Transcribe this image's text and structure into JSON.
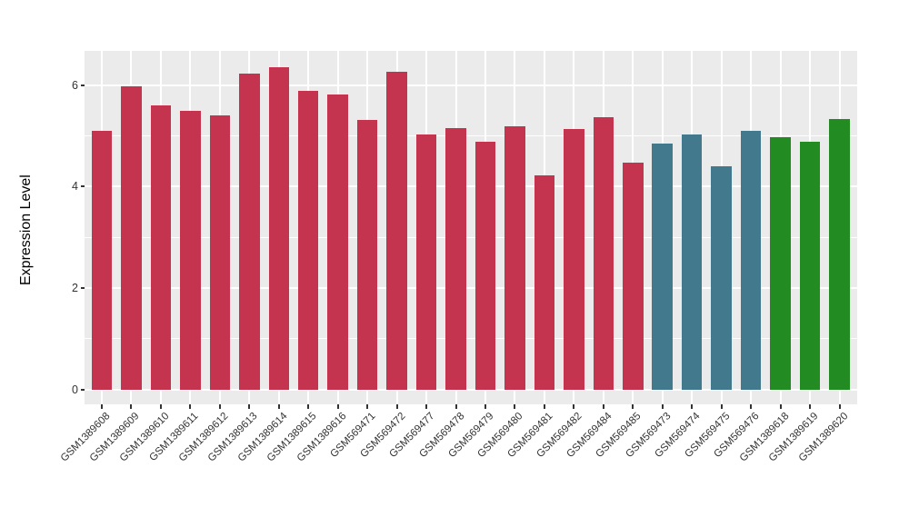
{
  "chart_data": {
    "type": "bar",
    "title": "",
    "xlabel": "",
    "ylabel": "Expression Level",
    "yticks": [
      0,
      2,
      4,
      6
    ],
    "ylim": [
      0,
      6.68
    ],
    "grid": "ggplot-gray: white major gridlines at 0,2,4,6; white minor at 1,3,5; vertical white gridline at each bar center",
    "legend_position": "none",
    "categories": [
      "GSM1389608",
      "GSM1389609",
      "GSM1389610",
      "GSM1389611",
      "GSM1389612",
      "GSM1389613",
      "GSM1389614",
      "GSM1389615",
      "GSM1389616",
      "GSM569471",
      "GSM569472",
      "GSM569477",
      "GSM569478",
      "GSM569479",
      "GSM569480",
      "GSM569481",
      "GSM569482",
      "GSM569484",
      "GSM569485",
      "GSM569473",
      "GSM569474",
      "GSM569475",
      "GSM569476",
      "GSM1389618",
      "GSM1389619",
      "GSM1389620"
    ],
    "values": [
      5.1,
      5.98,
      5.6,
      5.5,
      5.4,
      6.22,
      6.35,
      5.88,
      5.82,
      5.32,
      6.27,
      5.03,
      5.15,
      4.88,
      5.18,
      4.22,
      5.13,
      5.37,
      4.47,
      4.85,
      5.03,
      4.4,
      5.1,
      4.97,
      4.88,
      5.33
    ],
    "bar_colors": [
      "#C4344E",
      "#C4344E",
      "#C4344E",
      "#C4344E",
      "#C4344E",
      "#C4344E",
      "#C4344E",
      "#C4344E",
      "#C4344E",
      "#C4344E",
      "#C4344E",
      "#C4344E",
      "#C4344E",
      "#C4344E",
      "#C4344E",
      "#C4344E",
      "#C4344E",
      "#C4344E",
      "#C4344E",
      "#42798C",
      "#42798C",
      "#42798C",
      "#42798C",
      "#228B22",
      "#228B22",
      "#228B22"
    ],
    "palette": {
      "group_red": "#C4344E",
      "group_teal": "#42798C",
      "group_green": "#228B22",
      "panel_background": "#EBEBEB",
      "gridline": "#FFFFFF",
      "axis_text": "#333333",
      "axis_title": "#000000"
    }
  }
}
